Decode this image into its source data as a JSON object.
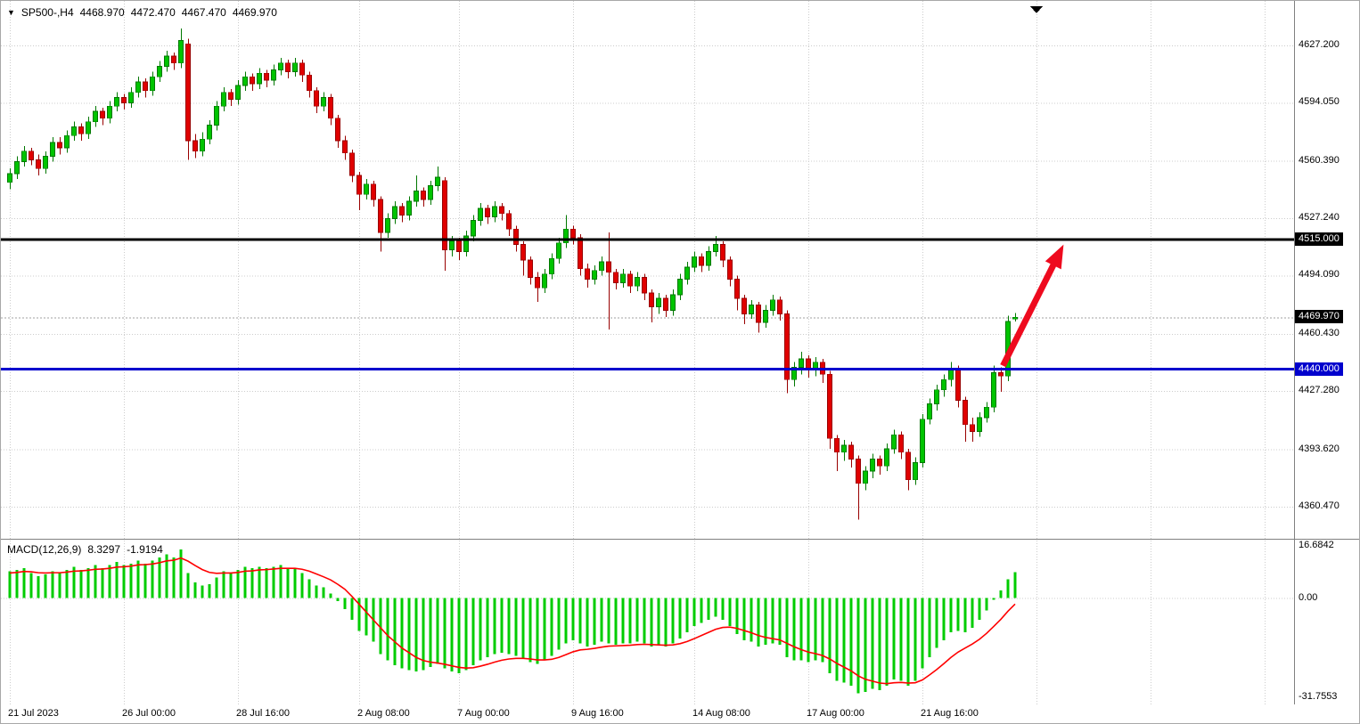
{
  "ui": {
    "header": {
      "dropdown_icon": "symbol-menu",
      "symbol_period": "SP500-,H4",
      "open": "4468.970",
      "high": "4472.470",
      "low": "4467.470",
      "close": "4469.970"
    },
    "macd_header": {
      "name": "MACD(12,26,9)",
      "macd_value": "8.3297",
      "signal_value": "-1.9194"
    }
  },
  "colors": {
    "bull_fill": "#00C400",
    "bull_stroke": "#007800",
    "bear_fill": "#E00000",
    "bear_stroke": "#990000",
    "hist": "#00CC00",
    "signal_line": "#FF0000",
    "arrow": "#EE0A1E",
    "grid": "#CCCCCC",
    "level_black": "#000000",
    "level_blue": "#0000CD",
    "current_price_line": "#A0A0A0",
    "current_price_tag_bg": "#000000",
    "splitter": "#808080",
    "axis_text": "#000000"
  },
  "chart_data": {
    "type": "candlestick",
    "symbol": "SP500-",
    "timeframe": "H4",
    "title": "SP500-,H4 4468.970 4472.470 4467.470 4469.970",
    "main_ylim": [
      4344,
      4640
    ],
    "price_ticks": [
      {
        "label": "4627.200",
        "value": 4627.2
      },
      {
        "label": "4594.050",
        "value": 4594.05
      },
      {
        "label": "4560.390",
        "value": 4560.39
      },
      {
        "label": "4527.240",
        "value": 4527.24
      },
      {
        "label": "4494.090",
        "value": 4494.09
      },
      {
        "label": "4460.430",
        "value": 4460.43
      },
      {
        "label": "4427.280",
        "value": 4427.28
      },
      {
        "label": "4393.620",
        "value": 4393.62
      },
      {
        "label": "4360.470",
        "value": 4360.47
      }
    ],
    "levels": [
      {
        "label": "4515.000",
        "value": 4515,
        "color": "#000000"
      },
      {
        "label": "4440.000",
        "value": 4440,
        "color": "#0000CD"
      }
    ],
    "current_price": {
      "label": "4469.970",
      "value": 4469.97
    },
    "time_ticks": [
      {
        "label": "21 Jul 2023",
        "bar": 0
      },
      {
        "label": "26 Jul 00:00",
        "bar": 16
      },
      {
        "label": "28 Jul 16:00",
        "bar": 32
      },
      {
        "label": "2 Aug 08:00",
        "bar": 49
      },
      {
        "label": "7 Aug 00:00",
        "bar": 63
      },
      {
        "label": "9 Aug 16:00",
        "bar": 79
      },
      {
        "label": "14 Aug 08:00",
        "bar": 96
      },
      {
        "label": "17 Aug 00:00",
        "bar": 112
      },
      {
        "label": "21 Aug 16:00",
        "bar": 128
      }
    ],
    "extra_grid_bars": [
      144,
      160,
      176
    ],
    "shift_marker_bar": 144,
    "candles": [
      [
        4548,
        4556,
        4544,
        4553
      ],
      [
        4553,
        4563,
        4550,
        4560
      ],
      [
        4560,
        4569,
        4557,
        4566
      ],
      [
        4566,
        4568,
        4558,
        4561
      ],
      [
        4561,
        4564,
        4552,
        4556
      ],
      [
        4556,
        4566,
        4553,
        4563
      ],
      [
        4563,
        4574,
        4560,
        4571
      ],
      [
        4571,
        4574,
        4564,
        4568
      ],
      [
        4568,
        4578,
        4565,
        4575
      ],
      [
        4575,
        4583,
        4572,
        4580
      ],
      [
        4580,
        4582,
        4572,
        4576
      ],
      [
        4576,
        4586,
        4573,
        4583
      ],
      [
        4583,
        4592,
        4580,
        4589
      ],
      [
        4589,
        4591,
        4581,
        4585
      ],
      [
        4585,
        4595,
        4582,
        4592
      ],
      [
        4592,
        4600,
        4589,
        4597
      ],
      [
        4597,
        4599,
        4590,
        4594
      ],
      [
        4594,
        4603,
        4591,
        4600
      ],
      [
        4600,
        4609,
        4597,
        4606
      ],
      [
        4606,
        4608,
        4597,
        4601
      ],
      [
        4601,
        4612,
        4598,
        4609
      ],
      [
        4609,
        4618,
        4606,
        4615
      ],
      [
        4615,
        4624,
        4612,
        4621
      ],
      [
        4621,
        4623,
        4613,
        4617
      ],
      [
        4617,
        4637,
        4614,
        4630
      ],
      [
        4628,
        4631,
        4561,
        4572
      ],
      [
        4572,
        4576,
        4562,
        4566
      ],
      [
        4566,
        4577,
        4563,
        4573
      ],
      [
        4573,
        4584,
        4570,
        4581
      ],
      [
        4581,
        4595,
        4578,
        4592
      ],
      [
        4592,
        4603,
        4589,
        4600
      ],
      [
        4600,
        4602,
        4592,
        4596
      ],
      [
        4596,
        4607,
        4593,
        4604
      ],
      [
        4604,
        4612,
        4601,
        4609
      ],
      [
        4609,
        4611,
        4601,
        4605
      ],
      [
        4605,
        4614,
        4602,
        4611
      ],
      [
        4611,
        4613,
        4603,
        4607
      ],
      [
        4607,
        4616,
        4604,
        4613
      ],
      [
        4613,
        4620,
        4610,
        4617
      ],
      [
        4617,
        4619,
        4608,
        4612
      ],
      [
        4612,
        4620,
        4609,
        4617
      ],
      [
        4617,
        4619,
        4606,
        4610
      ],
      [
        4610,
        4612,
        4597,
        4601
      ],
      [
        4601,
        4603,
        4588,
        4592
      ],
      [
        4592,
        4600,
        4589,
        4597
      ],
      [
        4597,
        4599,
        4581,
        4585
      ],
      [
        4585,
        4587,
        4568,
        4572
      ],
      [
        4572,
        4575,
        4561,
        4565
      ],
      [
        4565,
        4567,
        4548,
        4552
      ],
      [
        4552,
        4554,
        4532,
        4541
      ],
      [
        4541,
        4550,
        4538,
        4547
      ],
      [
        4547,
        4549,
        4534,
        4538
      ],
      [
        4538,
        4540,
        4508,
        4519
      ],
      [
        4519,
        4530,
        4516,
        4527
      ],
      [
        4527,
        4537,
        4524,
        4534
      ],
      [
        4534,
        4536,
        4525,
        4529
      ],
      [
        4529,
        4540,
        4526,
        4537
      ],
      [
        4537,
        4552,
        4534,
        4543
      ],
      [
        4543,
        4545,
        4534,
        4538
      ],
      [
        4538,
        4549,
        4535,
        4546
      ],
      [
        4546,
        4557,
        4543,
        4551
      ],
      [
        4549,
        4551,
        4497,
        4509
      ],
      [
        4509,
        4517,
        4505,
        4514
      ],
      [
        4514,
        4516,
        4503,
        4508
      ],
      [
        4508,
        4520,
        4505,
        4517
      ],
      [
        4517,
        4529,
        4514,
        4526
      ],
      [
        4526,
        4536,
        4523,
        4533
      ],
      [
        4533,
        4535,
        4524,
        4528
      ],
      [
        4528,
        4537,
        4525,
        4534
      ],
      [
        4534,
        4536,
        4526,
        4530
      ],
      [
        4530,
        4532,
        4517,
        4521
      ],
      [
        4521,
        4523,
        4508,
        4512
      ],
      [
        4512,
        4514,
        4494,
        4503
      ],
      [
        4503,
        4505,
        4489,
        4493
      ],
      [
        4493,
        4496,
        4479,
        4487
      ],
      [
        4487,
        4498,
        4484,
        4495
      ],
      [
        4495,
        4507,
        4492,
        4504
      ],
      [
        4504,
        4516,
        4501,
        4513
      ],
      [
        4513,
        4529,
        4510,
        4521
      ],
      [
        4521,
        4523,
        4512,
        4516
      ],
      [
        4516,
        4518,
        4494,
        4498
      ],
      [
        4498,
        4501,
        4487,
        4492
      ],
      [
        4492,
        4500,
        4489,
        4497
      ],
      [
        4497,
        4505,
        4494,
        4502
      ],
      [
        4502,
        4519,
        4463,
        4496
      ],
      [
        4496,
        4498,
        4486,
        4490
      ],
      [
        4490,
        4498,
        4487,
        4495
      ],
      [
        4495,
        4497,
        4484,
        4488
      ],
      [
        4488,
        4496,
        4485,
        4493
      ],
      [
        4493,
        4495,
        4480,
        4484
      ],
      [
        4484,
        4486,
        4467,
        4476
      ],
      [
        4476,
        4484,
        4472,
        4481
      ],
      [
        4481,
        4483,
        4470,
        4474
      ],
      [
        4474,
        4486,
        4471,
        4483
      ],
      [
        4483,
        4495,
        4480,
        4492
      ],
      [
        4492,
        4502,
        4489,
        4499
      ],
      [
        4499,
        4508,
        4496,
        4505
      ],
      [
        4505,
        4507,
        4496,
        4500
      ],
      [
        4500,
        4511,
        4497,
        4508
      ],
      [
        4508,
        4517,
        4505,
        4512
      ],
      [
        4512,
        4514,
        4499,
        4503
      ],
      [
        4503,
        4505,
        4488,
        4492
      ],
      [
        4492,
        4494,
        4474,
        4481
      ],
      [
        4481,
        4483,
        4466,
        4472
      ],
      [
        4472,
        4480,
        4469,
        4477
      ],
      [
        4477,
        4479,
        4461,
        4467
      ],
      [
        4467,
        4477,
        4464,
        4474
      ],
      [
        4474,
        4483,
        4471,
        4480
      ],
      [
        4480,
        4482,
        4468,
        4472
      ],
      [
        4472,
        4474,
        4426,
        4434
      ],
      [
        4434,
        4444,
        4430,
        4441
      ],
      [
        4441,
        4450,
        4437,
        4446
      ],
      [
        4446,
        4448,
        4435,
        4440
      ],
      [
        4440,
        4447,
        4436,
        4444
      ],
      [
        4444,
        4446,
        4432,
        4437
      ],
      [
        4437,
        4439,
        4394,
        4400
      ],
      [
        4400,
        4402,
        4381,
        4392
      ],
      [
        4392,
        4399,
        4387,
        4396
      ],
      [
        4396,
        4398,
        4383,
        4388
      ],
      [
        4388,
        4390,
        4353,
        4374
      ],
      [
        4374,
        4384,
        4370,
        4381
      ],
      [
        4381,
        4391,
        4377,
        4388
      ],
      [
        4388,
        4390,
        4379,
        4384
      ],
      [
        4384,
        4397,
        4381,
        4394
      ],
      [
        4394,
        4405,
        4391,
        4402
      ],
      [
        4402,
        4404,
        4388,
        4392
      ],
      [
        4392,
        4394,
        4370,
        4376
      ],
      [
        4376,
        4389,
        4373,
        4386
      ],
      [
        4386,
        4414,
        4383,
        4411
      ],
      [
        4411,
        4423,
        4408,
        4420
      ],
      [
        4420,
        4431,
        4416,
        4428
      ],
      [
        4428,
        4437,
        4424,
        4434
      ],
      [
        4434,
        4444,
        4430,
        4440
      ],
      [
        4440,
        4442,
        4418,
        4422
      ],
      [
        4422,
        4424,
        4398,
        4408
      ],
      [
        4408,
        4412,
        4398,
        4404
      ],
      [
        4404,
        4415,
        4401,
        4412
      ],
      [
        4412,
        4421,
        4409,
        4418
      ],
      [
        4418,
        4442,
        4415,
        4438
      ],
      [
        4438,
        4441,
        4427,
        4436
      ],
      [
        4436,
        4471,
        4433,
        4467.5
      ],
      [
        4468.97,
        4472.47,
        4467.47,
        4469.97
      ]
    ],
    "macd": {
      "label": "MACD(12,26,9)",
      "params": [
        12,
        26,
        9
      ],
      "current_macd": 8.3297,
      "current_signal": -1.9194,
      "ylim": [
        -31.7553,
        16.6842
      ],
      "ticks": [
        {
          "label": "16.6842",
          "value": 16.6842
        },
        {
          "label": "0.00",
          "value": 0
        },
        {
          "label": "-31.7553",
          "value": -31.7553
        }
      ],
      "histogram": [
        8.5,
        9.0,
        9.5,
        8.0,
        7.0,
        7.5,
        8.5,
        8.0,
        9.0,
        10.0,
        9.0,
        9.5,
        10.5,
        9.5,
        10.5,
        11.5,
        10.5,
        11.0,
        12.0,
        11.0,
        12.0,
        13.0,
        14.0,
        13.0,
        15.5,
        8.0,
        5.0,
        4.0,
        4.5,
        6.5,
        8.5,
        8.0,
        9.0,
        10.0,
        9.5,
        10.0,
        9.5,
        10.0,
        10.5,
        9.5,
        9.5,
        8.0,
        6.0,
        4.0,
        3.5,
        1.5,
        -1.0,
        -3.5,
        -7.0,
        -10.5,
        -12.0,
        -14.0,
        -18.0,
        -20.0,
        -21.5,
        -22.5,
        -23.0,
        -23.5,
        -23.0,
        -22.0,
        -21.0,
        -22.5,
        -23.5,
        -24.0,
        -23.0,
        -21.5,
        -20.0,
        -19.0,
        -18.0,
        -17.5,
        -18.0,
        -18.5,
        -19.5,
        -20.5,
        -21.0,
        -20.0,
        -18.5,
        -16.5,
        -14.5,
        -13.5,
        -14.5,
        -15.5,
        -15.0,
        -14.0,
        -14.5,
        -15.0,
        -14.5,
        -14.5,
        -14.0,
        -14.5,
        -15.5,
        -15.0,
        -15.5,
        -14.5,
        -13.0,
        -11.0,
        -9.0,
        -8.0,
        -7.0,
        -6.0,
        -7.0,
        -9.0,
        -11.5,
        -13.5,
        -14.0,
        -15.5,
        -15.0,
        -14.5,
        -15.0,
        -19.0,
        -20.0,
        -20.0,
        -20.5,
        -20.0,
        -20.5,
        -24.0,
        -26.5,
        -27.0,
        -28.0,
        -30.5,
        -30.0,
        -29.0,
        -29.5,
        -28.0,
        -26.0,
        -26.5,
        -28.0,
        -26.5,
        -22.5,
        -19.0,
        -16.0,
        -13.5,
        -11.0,
        -10.5,
        -11.0,
        -9.5,
        -7.0,
        -4.0,
        -0.5,
        2.5,
        6.0,
        8.3297
      ],
      "signal": [
        8.0,
        8.2,
        8.5,
        8.4,
        8.1,
        8.0,
        8.1,
        8.1,
        8.3,
        8.6,
        8.7,
        8.9,
        9.2,
        9.3,
        9.5,
        9.9,
        10.0,
        10.2,
        10.6,
        10.7,
        10.9,
        11.3,
        11.9,
        12.1,
        12.8,
        11.8,
        10.4,
        9.1,
        8.2,
        7.9,
        8.0,
        8.0,
        8.2,
        8.6,
        8.7,
        9.0,
        9.1,
        9.3,
        9.5,
        9.5,
        9.5,
        9.2,
        8.6,
        7.7,
        6.8,
        5.8,
        4.4,
        2.8,
        0.5,
        -2.0,
        -4.5,
        -7.0,
        -9.5,
        -12.0,
        -14.0,
        -16.0,
        -17.5,
        -19.0,
        -20.0,
        -20.5,
        -20.8,
        -21.2,
        -21.7,
        -22.2,
        -22.4,
        -22.3,
        -21.8,
        -21.2,
        -20.5,
        -19.9,
        -19.5,
        -19.3,
        -19.3,
        -19.5,
        -19.8,
        -19.8,
        -19.6,
        -19.0,
        -18.1,
        -17.2,
        -16.6,
        -16.4,
        -16.1,
        -15.7,
        -15.4,
        -15.3,
        -15.2,
        -15.1,
        -14.9,
        -14.8,
        -14.9,
        -15.0,
        -15.1,
        -15.0,
        -14.6,
        -13.9,
        -13.0,
        -12.0,
        -11.0,
        -10.0,
        -9.4,
        -9.3,
        -9.7,
        -10.4,
        -11.1,
        -12.0,
        -12.6,
        -13.0,
        -13.4,
        -14.5,
        -15.6,
        -16.5,
        -17.3,
        -17.8,
        -18.4,
        -19.5,
        -20.9,
        -22.1,
        -23.3,
        -24.9,
        -26.0,
        -26.6,
        -27.2,
        -27.4,
        -27.1,
        -27.0,
        -27.2,
        -27.1,
        -26.2,
        -24.6,
        -22.9,
        -21.0,
        -19.0,
        -17.3,
        -16.0,
        -14.7,
        -13.2,
        -11.3,
        -9.1,
        -6.8,
        -4.2,
        -1.9194
      ]
    },
    "annotation_arrow": {
      "from_bar": 139.3,
      "from_price": 4442,
      "to_bar": 147.8,
      "to_price": 4512
    }
  }
}
